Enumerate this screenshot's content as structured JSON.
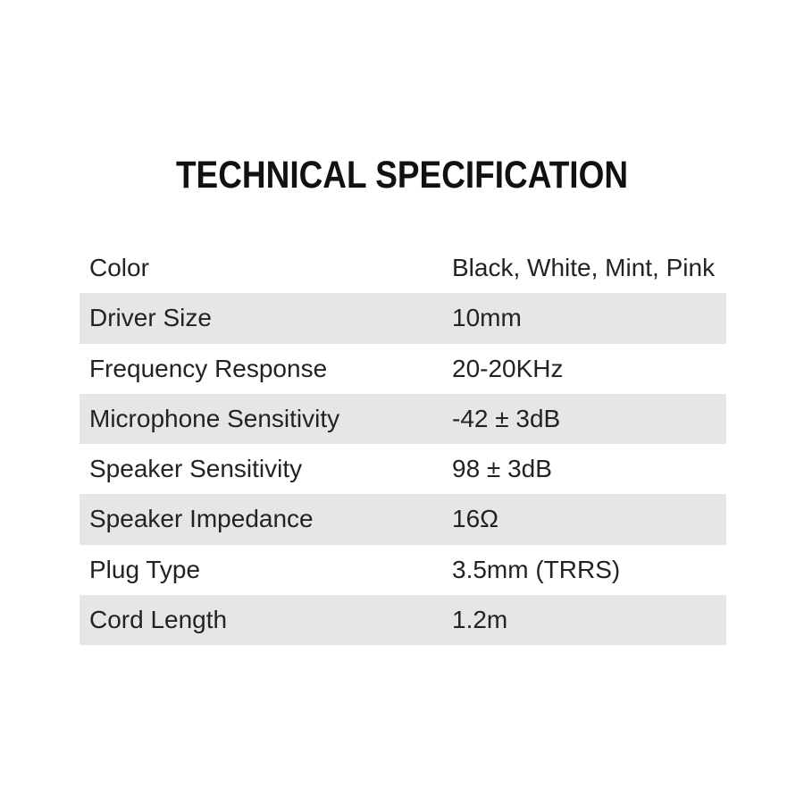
{
  "title": "TECHNICAL SPECIFICATION",
  "table": {
    "rows": [
      {
        "label": "Color",
        "value": "Black, White, Mint, Pink"
      },
      {
        "label": "Driver Size",
        "value": "10mm"
      },
      {
        "label": "Frequency Response",
        "value": "20-20KHz"
      },
      {
        "label": "Microphone Sensitivity",
        "value": "-42 ± 3dB"
      },
      {
        "label": "Speaker Sensitivity",
        "value": "98 ± 3dB"
      },
      {
        "label": "Speaker Impedance",
        "value": "16Ω"
      },
      {
        "label": "Plug Type",
        "value": "3.5mm (TRRS)"
      },
      {
        "label": "Cord Length",
        "value": "1.2m"
      }
    ]
  },
  "colors": {
    "background": "#ffffff",
    "row_alt": "#e6e6e6",
    "title_color": "#111111",
    "text_color": "#232323"
  }
}
